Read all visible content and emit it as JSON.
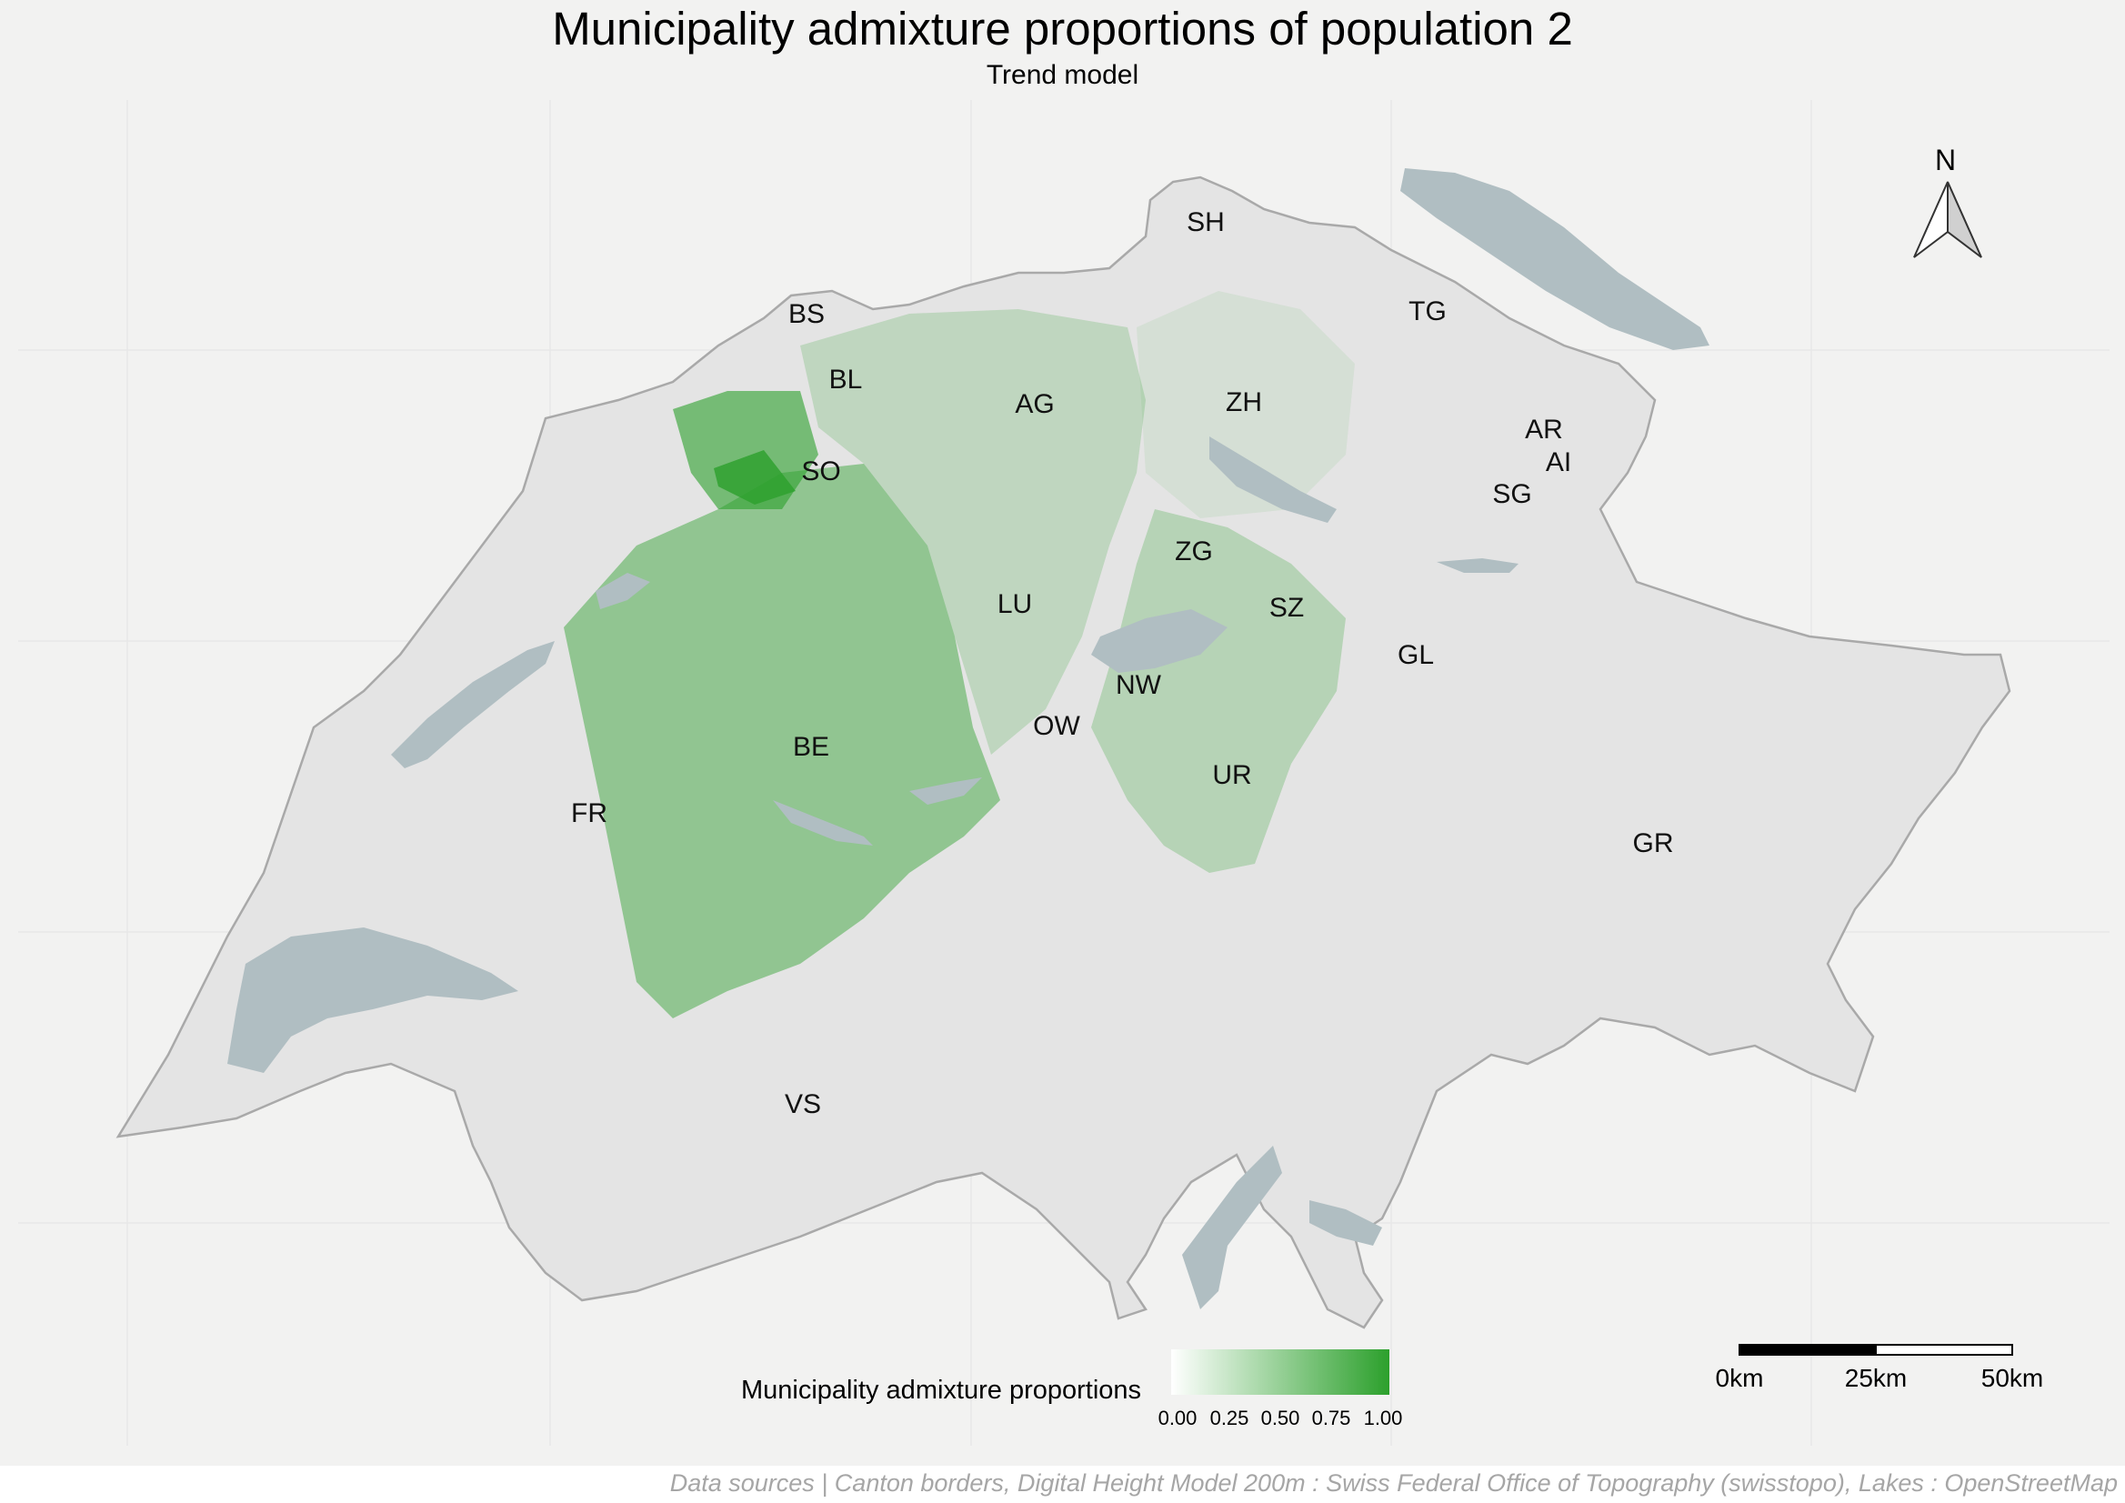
{
  "title": "Municipality admixture proportions of population 2",
  "subtitle": "Trend model",
  "colors": {
    "background": "#f2f2f1",
    "relief": "#e6e6e6",
    "lake": "#b0bec2",
    "border": "#a9a9a9",
    "low": "#ffffff",
    "high": "#2ca02c"
  },
  "cantons": [
    {
      "code": "SH",
      "value": 0.05
    },
    {
      "code": "TG",
      "value": 0.05
    },
    {
      "code": "BS",
      "value": 0.45
    },
    {
      "code": "BL",
      "value": 0.45
    },
    {
      "code": "AG",
      "value": 0.3
    },
    {
      "code": "ZH",
      "value": 0.15
    },
    {
      "code": "AR",
      "value": 0.0
    },
    {
      "code": "AI",
      "value": 0.0
    },
    {
      "code": "SG",
      "value": 0.05
    },
    {
      "code": "SO",
      "value": 0.75
    },
    {
      "code": "ZG",
      "value": 0.3
    },
    {
      "code": "LU",
      "value": 0.35
    },
    {
      "code": "SZ",
      "value": 0.35
    },
    {
      "code": "GL",
      "value": 0.05
    },
    {
      "code": "NW",
      "value": 0.2
    },
    {
      "code": "OW",
      "value": 0.2
    },
    {
      "code": "BE",
      "value": 0.6
    },
    {
      "code": "UR",
      "value": 0.3
    },
    {
      "code": "FR",
      "value": 0.05
    },
    {
      "code": "GR",
      "value": 0.0
    },
    {
      "code": "VS",
      "value": 0.05
    }
  ],
  "legend": {
    "title": "Municipality admixture proportions",
    "ticks": [
      "0.00",
      "0.25",
      "0.50",
      "0.75",
      "1.00"
    ]
  },
  "north_arrow": "N",
  "scale_bar": {
    "labels": [
      "0km",
      "25km",
      "50km"
    ]
  },
  "footer": "Data sources | Canton borders, Digital Height Model 200m : Swiss Federal Office of Topography (swisstopo), Lakes : OpenStreetMap"
}
